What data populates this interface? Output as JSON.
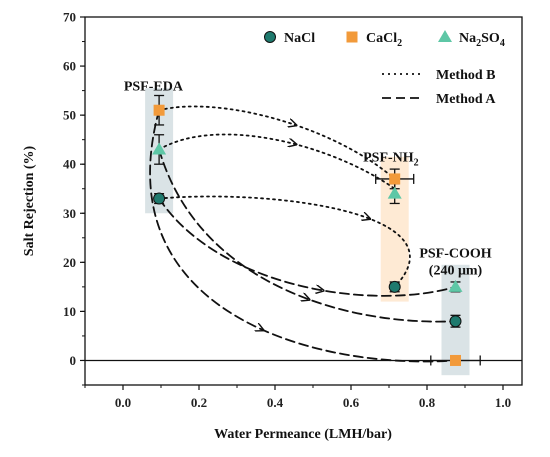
{
  "chart_data": {
    "type": "scatter",
    "xlabel": "Water Permeance (LMH/bar)",
    "ylabel": "Salt Rejection (%)",
    "xlim": [
      -0.1,
      1.05
    ],
    "ylim": [
      -5,
      70
    ],
    "x_ticks": [
      "0.0",
      "0.2",
      "0.4",
      "0.6",
      "0.8",
      "1.0"
    ],
    "y_ticks": [
      "0",
      "10",
      "20",
      "30",
      "40",
      "50",
      "60",
      "70"
    ],
    "grid": false,
    "legend_position": "top-right",
    "colors": {
      "NaCl": "#1f7a6e",
      "CaCl2": "#f29a3a",
      "Na2SO4": "#5ec7a6"
    },
    "series": [
      {
        "name": "NaCl",
        "legend_label": "NaCl",
        "marker": "circle",
        "points": [
          {
            "x": 0.095,
            "y": 33,
            "yerr": 1,
            "xerr": 0
          },
          {
            "x": 0.715,
            "y": 15,
            "yerr": 1,
            "xerr": 0
          },
          {
            "x": 0.875,
            "y": 8,
            "yerr": 1.2,
            "xerr": 0
          }
        ]
      },
      {
        "name": "CaCl2",
        "legend_label": "CaCl",
        "legend_sub": "2",
        "marker": "square",
        "points": [
          {
            "x": 0.095,
            "y": 51,
            "yerr": 3,
            "xerr": 0
          },
          {
            "x": 0.715,
            "y": 37,
            "yerr": 2,
            "xerr": 0.05
          },
          {
            "x": 0.875,
            "y": 0,
            "yerr": 0,
            "xerr": 0.065
          }
        ]
      },
      {
        "name": "Na2SO4",
        "legend_label": "Na",
        "legend_sub": "2",
        "legend_label2": "SO",
        "legend_sub2": "4",
        "marker": "triangle",
        "points": [
          {
            "x": 0.095,
            "y": 43,
            "yerr": 3,
            "xerr": 0
          },
          {
            "x": 0.715,
            "y": 34,
            "yerr": 2,
            "xerr": 0
          },
          {
            "x": 0.875,
            "y": 15,
            "yerr": 1,
            "xerr": 0
          }
        ]
      }
    ],
    "paths": [
      {
        "legend": "Method B",
        "style": "dotted",
        "curves": [
          {
            "from": [
              0.095,
              51
            ],
            "via": [
              [
                0.25,
                54
              ],
              [
                0.55,
                48
              ]
            ],
            "to": [
              0.715,
              37
            ]
          },
          {
            "from": [
              0.095,
              43
            ],
            "via": [
              [
                0.25,
                50
              ],
              [
                0.55,
                44
              ]
            ],
            "to": [
              0.715,
              35
            ]
          },
          {
            "from": [
              0.095,
              33
            ],
            "via": [
              [
                0.4,
                35
              ],
              [
                0.9,
                30
              ]
            ],
            "to": [
              0.715,
              15
            ]
          }
        ]
      },
      {
        "legend": "Method A",
        "style": "dashed",
        "curves": [
          {
            "from": [
              0.095,
              33
            ],
            "via": [
              [
                0.25,
                15
              ],
              [
                0.65,
                10
              ]
            ],
            "to": [
              0.875,
              15
            ]
          },
          {
            "from": [
              0.095,
              43
            ],
            "via": [
              [
                0.2,
                15
              ],
              [
                0.6,
                7
              ]
            ],
            "to": [
              0.875,
              8
            ]
          },
          {
            "from": [
              0.095,
              51
            ],
            "via": [
              [
                -0.05,
                10
              ],
              [
                0.5,
                -2
              ]
            ],
            "to": [
              0.875,
              0
            ]
          }
        ]
      }
    ],
    "annotations": [
      {
        "text": "PSF-EDA",
        "x": 0.08,
        "y": 55
      },
      {
        "text": "PSF-NH",
        "sub": "2",
        "x": 0.705,
        "y": 40.5
      },
      {
        "text": "PSF-COOH",
        "x": 0.875,
        "y": 21
      },
      {
        "text": "(240 μm)",
        "x": 0.875,
        "y": 17.5
      }
    ],
    "zero_line": true
  }
}
